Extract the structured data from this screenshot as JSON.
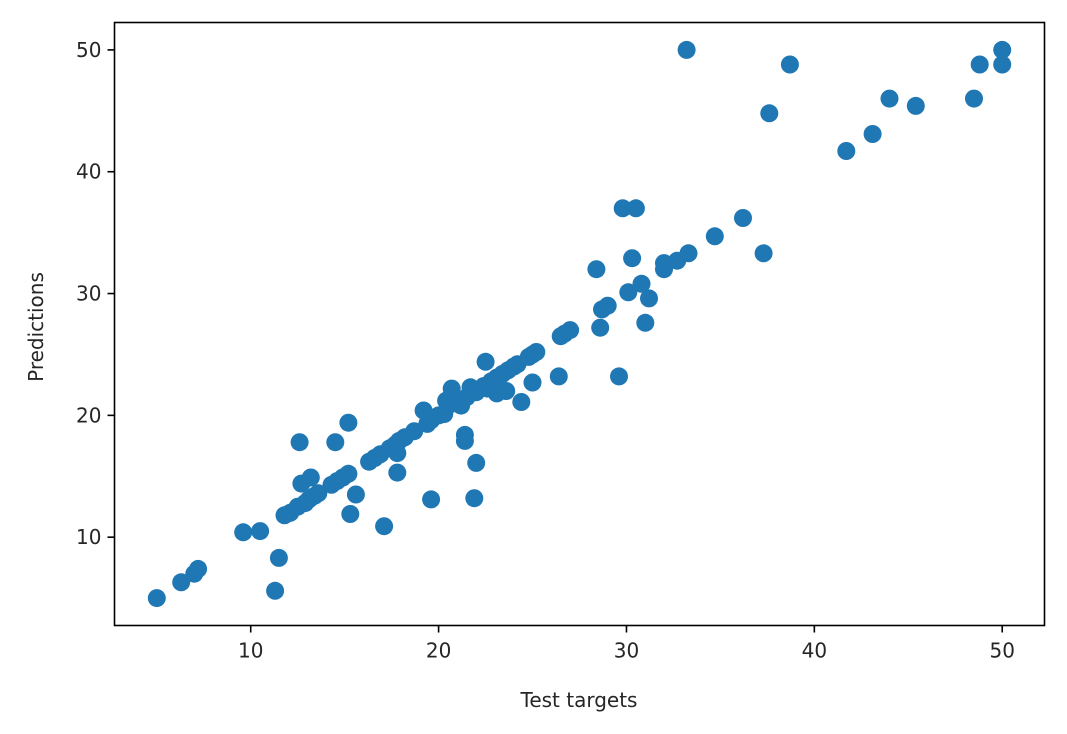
{
  "chart_data": {
    "type": "scatter",
    "title": "",
    "xlabel": "Test targets",
    "ylabel": "Predictions",
    "xlim": [
      2.75,
      52.25
    ],
    "ylim": [
      2.75,
      52.25
    ],
    "xticks": [
      10,
      20,
      30,
      40,
      50
    ],
    "yticks": [
      10,
      20,
      30,
      40,
      50
    ],
    "grid": false,
    "color": "#1f77b4",
    "points": [
      [
        5.0,
        5.0
      ],
      [
        6.3,
        6.3
      ],
      [
        7.0,
        7.0
      ],
      [
        7.2,
        7.4
      ],
      [
        9.6,
        10.4
      ],
      [
        10.5,
        10.5
      ],
      [
        11.3,
        5.6
      ],
      [
        11.5,
        8.3
      ],
      [
        11.8,
        11.8
      ],
      [
        12.1,
        12.0
      ],
      [
        12.5,
        12.5
      ],
      [
        12.6,
        17.8
      ],
      [
        12.7,
        14.4
      ],
      [
        12.9,
        12.8
      ],
      [
        13.1,
        13.1
      ],
      [
        13.2,
        14.9
      ],
      [
        13.4,
        13.4
      ],
      [
        13.6,
        13.6
      ],
      [
        14.3,
        14.3
      ],
      [
        14.5,
        17.8
      ],
      [
        14.6,
        14.6
      ],
      [
        14.9,
        14.9
      ],
      [
        15.2,
        15.2
      ],
      [
        15.2,
        19.4
      ],
      [
        15.3,
        11.9
      ],
      [
        15.6,
        13.5
      ],
      [
        16.3,
        16.2
      ],
      [
        16.6,
        16.5
      ],
      [
        16.9,
        16.8
      ],
      [
        17.1,
        10.9
      ],
      [
        17.4,
        17.3
      ],
      [
        17.7,
        17.6
      ],
      [
        17.8,
        15.3
      ],
      [
        17.8,
        16.9
      ],
      [
        17.9,
        17.9
      ],
      [
        18.2,
        18.2
      ],
      [
        18.7,
        18.7
      ],
      [
        19.2,
        20.4
      ],
      [
        19.4,
        19.3
      ],
      [
        19.6,
        13.1
      ],
      [
        19.6,
        19.6
      ],
      [
        20.0,
        20.0
      ],
      [
        20.3,
        20.1
      ],
      [
        20.4,
        21.2
      ],
      [
        20.5,
        20.8
      ],
      [
        20.7,
        21.7
      ],
      [
        20.7,
        22.2
      ],
      [
        21.2,
        20.8
      ],
      [
        21.4,
        18.4
      ],
      [
        21.4,
        17.9
      ],
      [
        21.5,
        21.5
      ],
      [
        21.7,
        22.3
      ],
      [
        21.9,
        13.2
      ],
      [
        22.0,
        16.1
      ],
      [
        22.0,
        21.9
      ],
      [
        22.4,
        22.4
      ],
      [
        22.5,
        24.4
      ],
      [
        22.6,
        22.2
      ],
      [
        22.8,
        22.8
      ],
      [
        23.1,
        21.8
      ],
      [
        23.1,
        23.1
      ],
      [
        23.4,
        23.4
      ],
      [
        23.6,
        22.0
      ],
      [
        23.7,
        23.7
      ],
      [
        24.0,
        24.0
      ],
      [
        24.2,
        24.2
      ],
      [
        24.4,
        21.1
      ],
      [
        24.8,
        24.8
      ],
      [
        25.0,
        22.7
      ],
      [
        25.0,
        25.0
      ],
      [
        25.2,
        25.2
      ],
      [
        26.4,
        23.2
      ],
      [
        26.5,
        26.5
      ],
      [
        26.7,
        26.7
      ],
      [
        27.0,
        27.0
      ],
      [
        28.4,
        32.0
      ],
      [
        28.6,
        27.2
      ],
      [
        28.7,
        28.7
      ],
      [
        29.0,
        29.0
      ],
      [
        29.6,
        23.2
      ],
      [
        29.8,
        37.0
      ],
      [
        30.1,
        30.1
      ],
      [
        30.3,
        32.9
      ],
      [
        30.5,
        37.0
      ],
      [
        30.8,
        30.8
      ],
      [
        31.0,
        27.6
      ],
      [
        31.2,
        29.6
      ],
      [
        32.0,
        32.0
      ],
      [
        32.0,
        32.5
      ],
      [
        32.7,
        32.7
      ],
      [
        33.2,
        50.0
      ],
      [
        33.3,
        33.3
      ],
      [
        34.7,
        34.7
      ],
      [
        36.2,
        36.2
      ],
      [
        37.3,
        33.3
      ],
      [
        37.6,
        44.8
      ],
      [
        38.7,
        48.8
      ],
      [
        41.7,
        41.7
      ],
      [
        43.1,
        43.1
      ],
      [
        44.0,
        46.0
      ],
      [
        45.4,
        45.4
      ],
      [
        48.5,
        46.0
      ],
      [
        48.8,
        48.8
      ],
      [
        50.0,
        50.0
      ],
      [
        50.0,
        48.8
      ]
    ]
  }
}
